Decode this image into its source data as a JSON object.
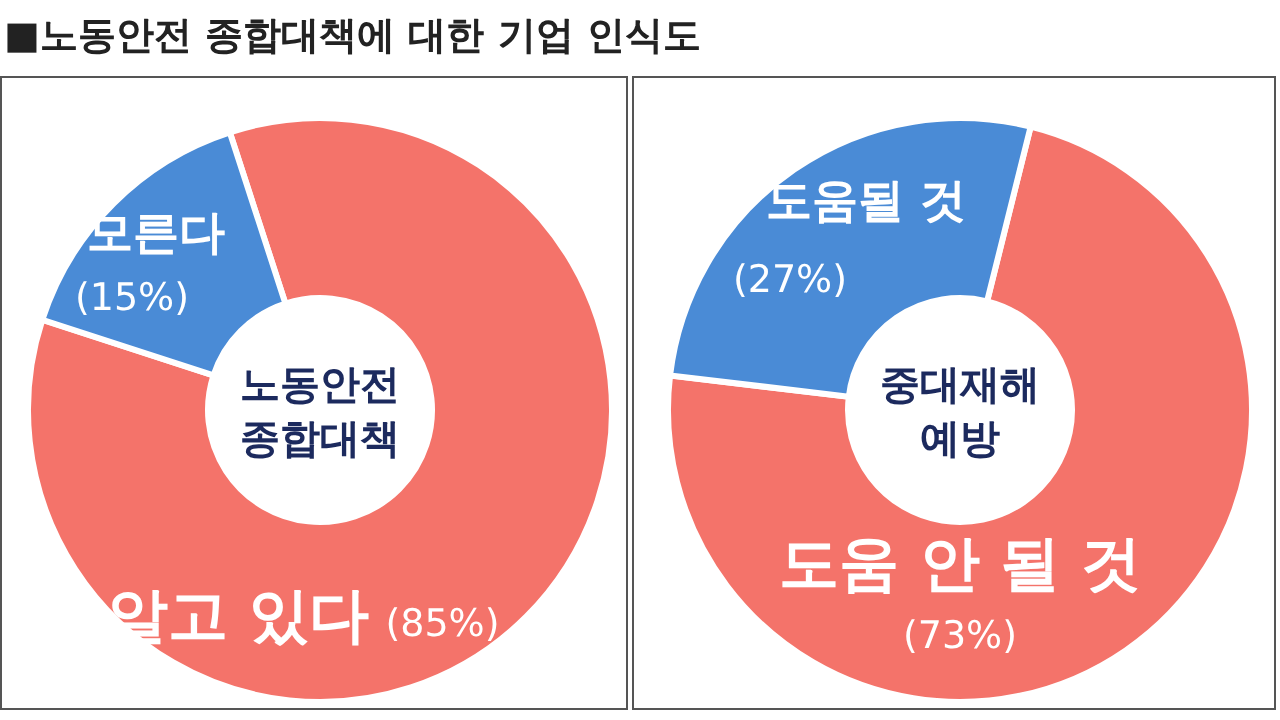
{
  "chart_data": [
    {
      "type": "donut",
      "title": "■노동안전 종합대책에 대한 기업 인식도",
      "categories": [
        "알고 있다",
        "모른다"
      ],
      "values": [
        85,
        15
      ],
      "colors": [
        "#f4736a",
        "#4a8bd6"
      ],
      "value_labels": [
        "(85%)",
        "(15%)"
      ],
      "annotations": [
        "노동안전\n종합대책"
      ]
    },
    {
      "type": "donut",
      "categories": [
        "도움 안 될 것",
        "도움될 것"
      ],
      "values": [
        73,
        27
      ],
      "colors": [
        "#f4736a",
        "#4a8bd6"
      ],
      "value_labels": [
        "(73%)",
        "(27%)"
      ],
      "annotations": [
        "중대재해\n예방"
      ]
    }
  ]
}
